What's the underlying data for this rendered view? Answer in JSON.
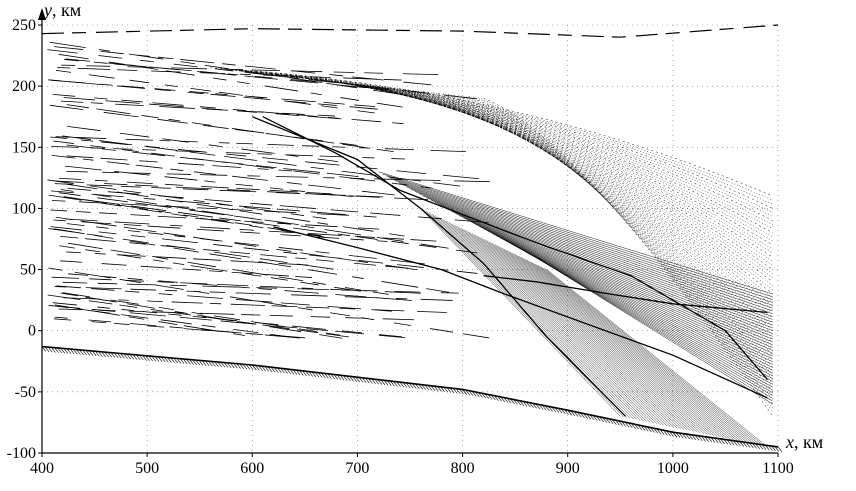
{
  "chart_data": {
    "type": "line",
    "xlabel_var": "x",
    "xlabel_unit": ", км",
    "ylabel_var": "y",
    "ylabel_unit": ", км",
    "xlim": [
      400,
      1100
    ],
    "ylim": [
      -100,
      250
    ],
    "xticks": [
      "400",
      "500",
      "600",
      "700",
      "800",
      "900",
      "1000",
      "1100"
    ],
    "yticks": [
      "250",
      "200",
      "150",
      "100",
      "50",
      "0",
      "-50",
      "-100"
    ],
    "grid": "dotted",
    "series": [
      {
        "role": "upper-boundary",
        "style": "dashed",
        "points": [
          [
            400,
            243
          ],
          [
            600,
            247
          ],
          [
            800,
            245
          ],
          [
            950,
            240
          ],
          [
            1100,
            250
          ]
        ]
      },
      {
        "role": "lower-boundary-hatched",
        "style": "hatched",
        "points": [
          [
            400,
            -13
          ],
          [
            600,
            -28
          ],
          [
            800,
            -48
          ],
          [
            900,
            -65
          ],
          [
            1000,
            -83
          ],
          [
            1100,
            -95
          ]
        ]
      },
      {
        "role": "shadow-edge",
        "style": "solid",
        "points": [
          [
            600,
            175
          ],
          [
            700,
            140
          ],
          [
            760,
            100
          ],
          [
            820,
            55
          ],
          [
            880,
            -5
          ],
          [
            955,
            -70
          ]
        ]
      },
      {
        "role": "caustic-upper",
        "style": "solid",
        "points": [
          [
            610,
            175
          ],
          [
            680,
            145
          ],
          [
            740,
            115
          ],
          [
            800,
            95
          ],
          [
            870,
            72
          ],
          [
            960,
            45
          ],
          [
            1050,
            0
          ],
          [
            1090,
            -40
          ]
        ]
      },
      {
        "role": "caustic-middle",
        "style": "solid",
        "points": [
          [
            620,
            85
          ],
          [
            700,
            68
          ],
          [
            780,
            50
          ],
          [
            840,
            30
          ],
          [
            920,
            5
          ],
          [
            1000,
            -20
          ],
          [
            1090,
            -55
          ]
        ]
      },
      {
        "role": "caustic-lower",
        "style": "solid",
        "points": [
          [
            820,
            45
          ],
          [
            870,
            40
          ],
          [
            940,
            30
          ],
          [
            1000,
            22
          ],
          [
            1090,
            15
          ]
        ]
      }
    ]
  }
}
